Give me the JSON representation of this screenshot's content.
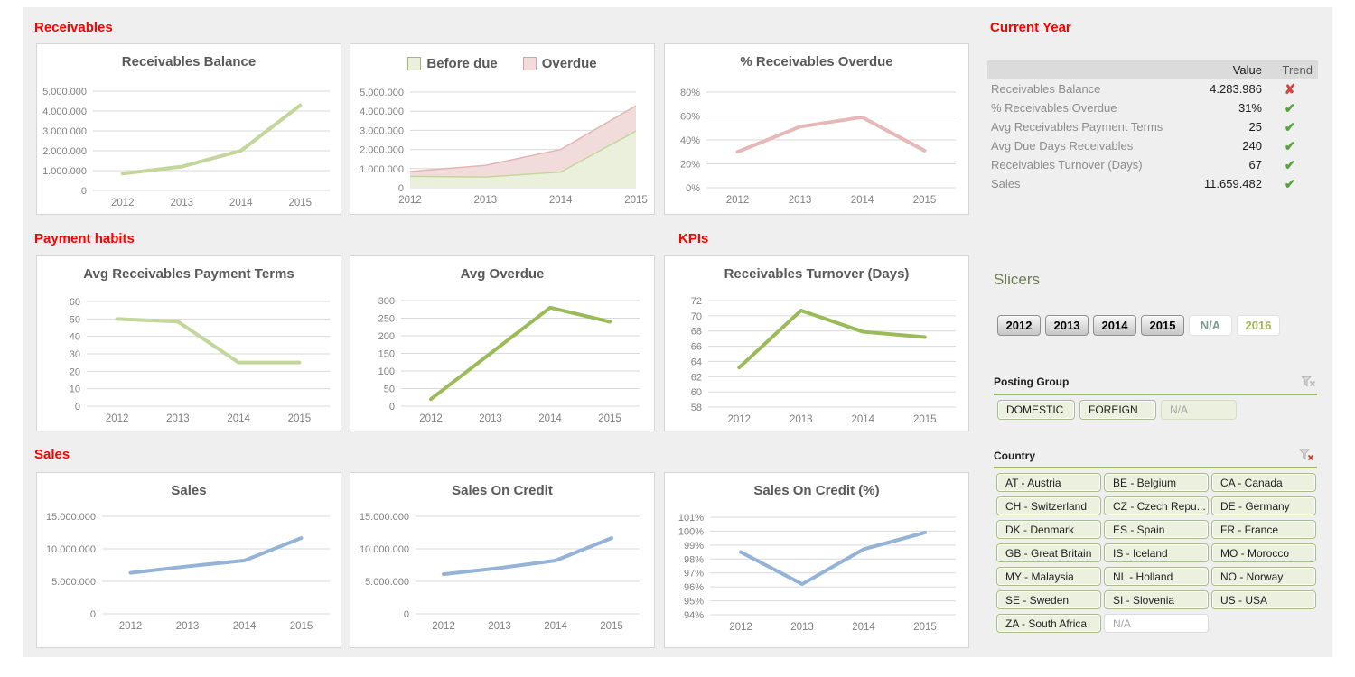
{
  "sections": {
    "receivables": "Receivables",
    "payment_habits": "Payment habits",
    "kpis": "KPIs",
    "sales": "Sales",
    "current_year": "Current Year"
  },
  "current_year_table": {
    "columns": [
      "Value",
      "Trend"
    ],
    "rows": [
      {
        "label": "Receivables Balance",
        "value": "4.283.986",
        "trend": "down"
      },
      {
        "label": "% Receivables Overdue",
        "value": "31%",
        "trend": "up"
      },
      {
        "label": "Avg Receivables Payment Terms",
        "value": "25",
        "trend": "up"
      },
      {
        "label": "Avg Due Days Receivables",
        "value": "240",
        "trend": "up"
      },
      {
        "label": "Receivables Turnover (Days)",
        "value": "67",
        "trend": "up"
      },
      {
        "label": "Sales",
        "value": "11.659.482",
        "trend": "up"
      }
    ]
  },
  "slicers": {
    "title": "Slicers",
    "year": {
      "items": [
        {
          "label": "2012",
          "state": "selected"
        },
        {
          "label": "2013",
          "state": "selected"
        },
        {
          "label": "2014",
          "state": "selected"
        },
        {
          "label": "2015",
          "state": "selected"
        },
        {
          "label": "N/A",
          "state": "empty"
        },
        {
          "label": "2016",
          "state": "available"
        }
      ]
    },
    "posting_group": {
      "label": "Posting Group",
      "items": [
        {
          "label": "DOMESTIC",
          "state": "selected"
        },
        {
          "label": "FOREIGN",
          "state": "selected"
        },
        {
          "label": "N/A",
          "state": "empty"
        }
      ]
    },
    "country": {
      "label": "Country",
      "items": [
        {
          "label": "AT - Austria",
          "state": "selected"
        },
        {
          "label": "BE - Belgium",
          "state": "selected"
        },
        {
          "label": "CA - Canada",
          "state": "selected"
        },
        {
          "label": "CH - Switzerland",
          "state": "selected"
        },
        {
          "label": "CZ - Czech Repu...",
          "state": "selected"
        },
        {
          "label": "DE - Germany",
          "state": "selected"
        },
        {
          "label": "DK - Denmark",
          "state": "selected"
        },
        {
          "label": "ES - Spain",
          "state": "selected"
        },
        {
          "label": "FR - France",
          "state": "selected"
        },
        {
          "label": "GB - Great Britain",
          "state": "selected"
        },
        {
          "label": "IS - Iceland",
          "state": "selected"
        },
        {
          "label": "MO - Morocco",
          "state": "selected"
        },
        {
          "label": "MY - Malaysia",
          "state": "selected"
        },
        {
          "label": "NL - Holland",
          "state": "selected"
        },
        {
          "label": "NO - Norway",
          "state": "selected"
        },
        {
          "label": "SE - Sweden",
          "state": "selected"
        },
        {
          "label": "SI - Slovenia",
          "state": "selected"
        },
        {
          "label": "US - USA",
          "state": "selected"
        },
        {
          "label": "ZA - South Africa",
          "state": "selected"
        },
        {
          "label": "N/A",
          "state": "empty"
        }
      ]
    }
  },
  "colors": {
    "section_red": "#FF0000",
    "chart_title_gray": "#595959",
    "light_green_line": "#C3D69B",
    "olive_line": "#9BBB59",
    "pink_line": "#E6B9B8",
    "blue_line": "#95B3D7",
    "slicer_green": "#9BBB59",
    "slicer_item_bg": "#EBF1DE",
    "trend_up_green": "#54A43C",
    "trend_down_red": "#CE4743"
  },
  "chart_data": [
    {
      "type": "line",
      "title": "Receivables Balance",
      "categories": [
        "2012",
        "2013",
        "2014",
        "2015"
      ],
      "values": [
        850000,
        1200000,
        2000000,
        4283986
      ],
      "ylim": [
        0,
        5000000
      ],
      "yticks": [
        "0",
        "1.000.000",
        "2.000.000",
        "3.000.000",
        "4.000.000",
        "5.000.000"
      ],
      "color": "#C3D69B",
      "grid": true
    },
    {
      "type": "area-stacked",
      "title": "",
      "legend_position": "top",
      "categories": [
        "2012",
        "2013",
        "2014",
        "2015"
      ],
      "series": [
        {
          "name": "Before due",
          "values": [
            595000,
            560000,
            820000,
            2956000
          ],
          "fill": "#EBF0DC",
          "stroke": "#C4D79B"
        },
        {
          "name": "Overdue",
          "values": [
            255000,
            610000,
            1180000,
            1328000
          ],
          "fill": "#F1DCDB",
          "stroke": "#E2B5B4"
        }
      ],
      "ylim": [
        0,
        5000000
      ],
      "yticks": [
        "0",
        "1.000.000",
        "2.000.000",
        "3.000.000",
        "4.000.000",
        "5.000.000"
      ],
      "grid": true
    },
    {
      "type": "line",
      "title": "% Receivables Overdue",
      "categories": [
        "2012",
        "2013",
        "2014",
        "2015"
      ],
      "values": [
        30,
        51,
        59,
        31
      ],
      "ylim": [
        0,
        80
      ],
      "yticks": [
        "0%",
        "20%",
        "40%",
        "60%",
        "80%"
      ],
      "color": "#E6B9B8",
      "grid": true
    },
    {
      "type": "line",
      "title": "Avg Receivables Payment Terms",
      "categories": [
        "2012",
        "2013",
        "2014",
        "2015"
      ],
      "values": [
        50,
        48.5,
        25,
        25
      ],
      "ylim": [
        0,
        60
      ],
      "yticks": [
        "0",
        "10",
        "20",
        "30",
        "40",
        "50",
        "60"
      ],
      "color": "#C3D69B",
      "grid": true
    },
    {
      "type": "line",
      "title": "Avg Overdue",
      "categories": [
        "2012",
        "2013",
        "2014",
        "2015"
      ],
      "values": [
        20,
        150,
        280,
        240
      ],
      "ylim": [
        0,
        300
      ],
      "yticks": [
        "0",
        "50",
        "100",
        "150",
        "200",
        "250",
        "300"
      ],
      "color": "#9BBB59",
      "grid": true
    },
    {
      "type": "line",
      "title": "Receivables Turnover (Days)",
      "categories": [
        "2012",
        "2013",
        "2014",
        "2015"
      ],
      "values": [
        63.2,
        70.7,
        67.9,
        67.2
      ],
      "ylim": [
        58,
        72
      ],
      "yticks": [
        "58",
        "60",
        "62",
        "64",
        "66",
        "68",
        "70",
        "72"
      ],
      "color": "#9BBB59",
      "grid": true
    },
    {
      "type": "line",
      "title": "Sales",
      "categories": [
        "2012",
        "2013",
        "2014",
        "2015"
      ],
      "values": [
        6300000,
        7300000,
        8200000,
        11659482
      ],
      "ylim": [
        0,
        15000000
      ],
      "yticks": [
        "0",
        "5.000.000",
        "10.000.000",
        "15.000.000"
      ],
      "color": "#95B3D7",
      "grid": true
    },
    {
      "type": "line",
      "title": "Sales On Credit",
      "categories": [
        "2012",
        "2013",
        "2014",
        "2015"
      ],
      "values": [
        6100000,
        7050000,
        8200000,
        11650000
      ],
      "ylim": [
        0,
        15000000
      ],
      "yticks": [
        "0",
        "5.000.000",
        "10.000.000",
        "15.000.000"
      ],
      "color": "#95B3D7",
      "grid": true
    },
    {
      "type": "line",
      "title": "Sales On Credit (%)",
      "categories": [
        "2012",
        "2013",
        "2014",
        "2015"
      ],
      "values": [
        98.5,
        96.2,
        98.7,
        99.9
      ],
      "ylim": [
        94,
        101
      ],
      "yticks": [
        "94%",
        "95%",
        "96%",
        "97%",
        "98%",
        "99%",
        "100%",
        "101%"
      ],
      "color": "#95B3D7",
      "grid": true
    }
  ]
}
